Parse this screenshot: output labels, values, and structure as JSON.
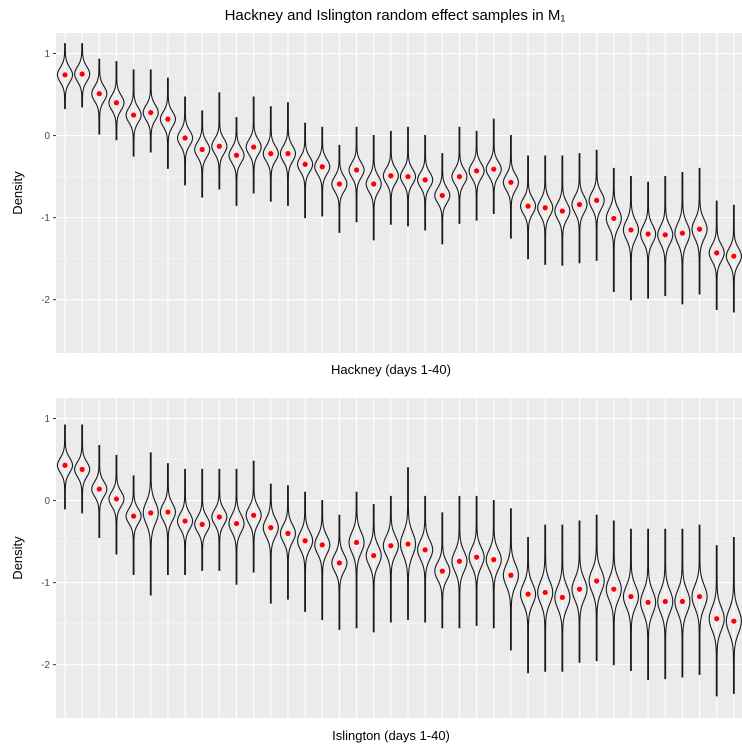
{
  "title": "Hackney and Islington random effect samples in M₁",
  "chart_data": [
    {
      "type": "violin",
      "xlabel": "Hackney (days 1-40)",
      "ylabel": "Density",
      "ylim": [
        -2.65,
        1.25
      ],
      "yticks": [
        1,
        0,
        -1,
        -2
      ],
      "ytick_labels": [
        "1",
        "0",
        "-1",
        "-2"
      ],
      "grid": true,
      "legend": "none",
      "median_color": "#ff0000",
      "violin_color": "#1a1a1a",
      "panel_color": "#ebebeb",
      "days": [
        1,
        2,
        3,
        4,
        5,
        6,
        7,
        8,
        9,
        10,
        11,
        12,
        13,
        14,
        15,
        16,
        17,
        18,
        19,
        20,
        21,
        22,
        23,
        24,
        25,
        26,
        27,
        28,
        29,
        30,
        31,
        32,
        33,
        34,
        35,
        36,
        37,
        38,
        39,
        40
      ],
      "medians": [
        0.74,
        0.75,
        0.51,
        0.4,
        0.25,
        0.28,
        0.2,
        -0.03,
        -0.17,
        -0.13,
        -0.24,
        -0.14,
        -0.22,
        -0.22,
        -0.35,
        -0.38,
        -0.59,
        -0.42,
        -0.59,
        -0.49,
        -0.5,
        -0.54,
        -0.73,
        -0.5,
        -0.43,
        -0.41,
        -0.57,
        -0.86,
        -0.88,
        -0.92,
        -0.84,
        -0.79,
        -1.01,
        -1.15,
        -1.2,
        -1.21,
        -1.19,
        -1.14,
        -1.43,
        -1.47
      ],
      "y_min": [
        0.33,
        0.35,
        0.02,
        -0.05,
        -0.25,
        -0.2,
        -0.4,
        -0.6,
        -0.75,
        -0.65,
        -0.85,
        -0.7,
        -0.8,
        -0.85,
        -1.0,
        -0.98,
        -1.18,
        -1.05,
        -1.27,
        -1.08,
        -1.1,
        -1.15,
        -1.32,
        -1.07,
        -1.03,
        -0.95,
        -1.25,
        -1.5,
        -1.57,
        -1.58,
        -1.55,
        -1.52,
        -1.9,
        -2.0,
        -1.98,
        -1.95,
        -2.05,
        -1.93,
        -2.12,
        -2.15
      ],
      "y_max": [
        1.12,
        1.12,
        0.93,
        0.9,
        0.8,
        0.8,
        0.7,
        0.47,
        0.3,
        0.52,
        0.22,
        0.47,
        0.35,
        0.4,
        0.15,
        0.1,
        -0.12,
        0.1,
        0.0,
        0.05,
        0.1,
        0.0,
        -0.22,
        0.1,
        0.05,
        0.2,
        0.0,
        -0.25,
        -0.25,
        -0.25,
        -0.22,
        -0.18,
        -0.4,
        -0.5,
        -0.57,
        -0.5,
        -0.45,
        -0.4,
        -0.8,
        -0.85
      ]
    },
    {
      "type": "violin",
      "xlabel": "Islington (days 1-40)",
      "ylabel": "Density",
      "ylim": [
        -2.65,
        1.25
      ],
      "yticks": [
        1,
        0,
        -1,
        -2
      ],
      "ytick_labels": [
        "1",
        "0",
        "-1",
        "-2"
      ],
      "grid": true,
      "legend": "none",
      "median_color": "#ff0000",
      "violin_color": "#1a1a1a",
      "panel_color": "#ebebeb",
      "days": [
        1,
        2,
        3,
        4,
        5,
        6,
        7,
        8,
        9,
        10,
        11,
        12,
        13,
        14,
        15,
        16,
        17,
        18,
        19,
        20,
        21,
        22,
        23,
        24,
        25,
        26,
        27,
        28,
        29,
        30,
        31,
        32,
        33,
        34,
        35,
        36,
        37,
        38,
        39,
        40
      ],
      "medians": [
        0.43,
        0.38,
        0.14,
        0.02,
        -0.19,
        -0.15,
        -0.14,
        -0.25,
        -0.29,
        -0.2,
        -0.28,
        -0.18,
        -0.33,
        -0.4,
        -0.49,
        -0.54,
        -0.76,
        -0.51,
        -0.67,
        -0.55,
        -0.53,
        -0.6,
        -0.86,
        -0.74,
        -0.69,
        -0.72,
        -0.91,
        -1.14,
        -1.12,
        -1.18,
        -1.08,
        -0.98,
        -1.08,
        -1.17,
        -1.24,
        -1.23,
        -1.23,
        -1.17,
        -1.44,
        -1.47
      ],
      "y_min": [
        -0.1,
        -0.15,
        -0.45,
        -0.65,
        -0.9,
        -1.15,
        -0.9,
        -0.9,
        -0.85,
        -0.85,
        -1.02,
        -0.87,
        -1.25,
        -1.2,
        -1.35,
        -1.45,
        -1.57,
        -1.55,
        -1.6,
        -1.48,
        -1.45,
        -1.48,
        -1.55,
        -1.55,
        -1.52,
        -1.55,
        -1.82,
        -2.1,
        -2.08,
        -2.08,
        -1.97,
        -1.95,
        -2.0,
        -2.07,
        -2.18,
        -2.17,
        -2.15,
        -2.12,
        -2.38,
        -2.35
      ],
      "y_max": [
        0.92,
        0.92,
        0.67,
        0.55,
        0.3,
        0.58,
        0.45,
        0.38,
        0.38,
        0.38,
        0.38,
        0.48,
        0.2,
        0.18,
        0.1,
        0.0,
        -0.18,
        0.1,
        -0.05,
        0.05,
        0.4,
        0.05,
        -0.15,
        0.05,
        0.05,
        0.0,
        -0.1,
        -0.45,
        -0.3,
        -0.3,
        -0.25,
        -0.18,
        -0.25,
        -0.35,
        -0.35,
        -0.35,
        -0.35,
        -0.3,
        -0.55,
        -0.45
      ]
    }
  ]
}
